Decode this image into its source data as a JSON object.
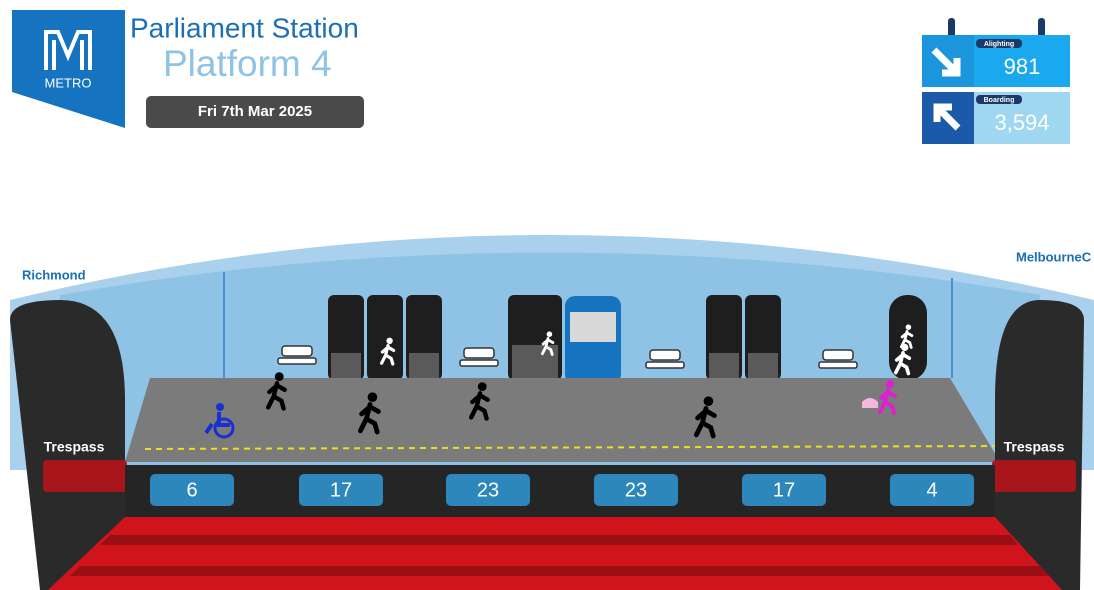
{
  "header": {
    "logo": "METRO",
    "title": "Parliament Station",
    "subtitle": "Platform 4",
    "date": "Fri 7th Mar 2025"
  },
  "counters": {
    "alighting": {
      "label": "Alighting",
      "value": "981"
    },
    "boarding": {
      "label": "Boarding",
      "value": "3,594"
    }
  },
  "directions": {
    "left": "Richmond",
    "right": "MelbourneC"
  },
  "trespass": {
    "left": "Trespass",
    "right": "Trespass"
  },
  "carriages": [
    "6",
    "17",
    "23",
    "23",
    "17",
    "4"
  ]
}
